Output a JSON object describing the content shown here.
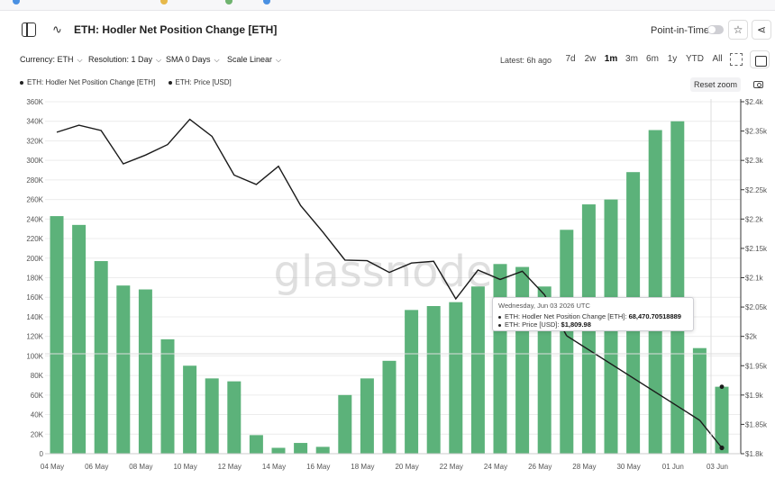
{
  "header": {
    "title": "ETH: Hodler Net Position Change [ETH]",
    "point_in_time_label": "Point-in-Time"
  },
  "toolbar": {
    "currency": "Currency: ETH",
    "resolution": "Resolution: 1 Day",
    "sma": "SMA 0 Days",
    "scale": "Scale Linear",
    "latest": "Latest: 6h ago",
    "ranges": [
      "7d",
      "2w",
      "1m",
      "3m",
      "6m",
      "1y",
      "YTD",
      "All"
    ],
    "active_range": "1m"
  },
  "legend": {
    "items": [
      "ETH: Hodler Net Position Change [ETH]",
      "ETH: Price [USD]"
    ]
  },
  "controls": {
    "reset_zoom": "Reset zoom"
  },
  "watermark": "glassnode",
  "tooltip": {
    "date": "Wednesday, Jun 03 2026 UTC",
    "row1_label": "ETH: Hodler Net Position Change [ETH]:",
    "row1_value": "68,470.70518889",
    "row2_label": "ETH: Price [USD]:",
    "row2_value": "$1,809.98"
  },
  "colors": {
    "bar": "#5cb27a",
    "line": "#1a1a1a",
    "grid": "#ececec"
  },
  "icons": [
    "sidebar-toggle-icon",
    "line-chart-icon",
    "star-icon",
    "share-icon",
    "zoom-select-icon",
    "calendar-icon",
    "camera-icon"
  ],
  "chart_data": {
    "type": "bar",
    "x_tick_labels": [
      "04 May",
      "06 May",
      "08 May",
      "10 May",
      "12 May",
      "14 May",
      "16 May",
      "18 May",
      "20 May",
      "22 May",
      "24 May",
      "26 May",
      "28 May",
      "30 May",
      "01 Jun",
      "03 Jun"
    ],
    "ylim_left": [
      0,
      360000
    ],
    "y_ticks_left": [
      "0",
      "20K",
      "40K",
      "60K",
      "80K",
      "100K",
      "120K",
      "140K",
      "160K",
      "180K",
      "200K",
      "220K",
      "240K",
      "260K",
      "280K",
      "300K",
      "320K",
      "340K",
      "360K"
    ],
    "ylim_right": [
      1800,
      2400
    ],
    "y_ticks_right": [
      "$1.8k",
      "$1.85k",
      "$1.9k",
      "$1.95k",
      "$2k",
      "$2.05k",
      "$2.1k",
      "$2.15k",
      "$2.2k",
      "$2.25k",
      "$2.3k",
      "$2.35k",
      "$2.4k"
    ],
    "series": [
      {
        "name": "ETH: Hodler Net Position Change [ETH]",
        "type": "bar",
        "axis": "left",
        "values": [
          243000,
          234000,
          197000,
          172000,
          168000,
          117000,
          90000,
          77000,
          74000,
          19000,
          6000,
          11000,
          7000,
          60000,
          77000,
          95000,
          147000,
          151000,
          155000,
          171000,
          194000,
          191000,
          171000,
          229000,
          255000,
          260000,
          288000,
          331000,
          340000,
          108000,
          68470.70518889
        ]
      },
      {
        "name": "ETH: Price [USD]",
        "type": "line",
        "axis": "right",
        "values": [
          2348,
          2360,
          2351,
          2294,
          2309,
          2327,
          2370,
          2341,
          2275,
          2259,
          2290,
          2223,
          2178,
          2130,
          2129,
          2109,
          2125,
          2128,
          2064,
          2113,
          2097,
          2111,
          2071,
          2001,
          null,
          null,
          null,
          null,
          null,
          1857,
          1809.98
        ]
      }
    ],
    "grid": true,
    "legend_position": "top-left"
  }
}
